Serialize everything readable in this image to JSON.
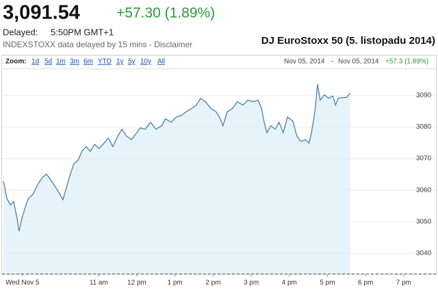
{
  "header": {
    "price": "3,091.54",
    "change": "+57.30 (1.89%)",
    "delayed_label": "Delayed:",
    "delayed_time": "5:50PM GMT+1",
    "note": "INDEXSTOXX data delayed by 15 mins - Disclaimer",
    "caption": "DJ EuroStoxx 50 (5. listopadu 2014)"
  },
  "zoom": {
    "label": "Zoom:",
    "options": [
      "1d",
      "5d",
      "1m",
      "3m",
      "6m",
      "YTD",
      "1y",
      "5y",
      "10y",
      "All"
    ],
    "date_from": "Nov 05, 2014",
    "separator": "-",
    "date_to": "Nov 05, 2014",
    "change": "+57.3 (1.89%)"
  },
  "chart_data": {
    "type": "line",
    "color": "#4a7fa3",
    "fill": "#e6f3fb",
    "grid": true,
    "x": [
      8.5,
      8.59,
      8.68,
      8.77,
      8.86,
      8.91,
      8.98,
      9.09,
      9.16,
      9.27,
      9.4,
      9.52,
      9.63,
      9.76,
      9.88,
      9.99,
      10.06,
      10.15,
      10.24,
      10.35,
      10.46,
      10.56,
      10.67,
      10.78,
      10.89,
      11.01,
      11.14,
      11.25,
      11.37,
      11.5,
      11.61,
      11.73,
      11.86,
      11.96,
      12.09,
      12.22,
      12.36,
      12.5,
      12.65,
      12.75,
      12.9,
      13.04,
      13.17,
      13.29,
      13.44,
      13.56,
      13.67,
      13.8,
      13.94,
      14.08,
      14.19,
      14.26,
      14.37,
      14.51,
      14.64,
      14.78,
      14.91,
      15.05,
      15.18,
      15.27,
      15.34,
      15.41,
      15.52,
      15.63,
      15.73,
      15.84,
      15.95,
      16.09,
      16.2,
      16.31,
      16.42,
      16.52,
      16.58,
      16.67,
      16.74,
      16.81,
      16.92,
      17.03,
      17.14,
      17.21,
      17.28,
      17.39,
      17.49,
      17.6
    ],
    "values": [
      3062.9,
      3057.5,
      3055.3,
      3056.4,
      3050.9,
      3047.0,
      3050.9,
      3055.3,
      3057.5,
      3058.6,
      3061.8,
      3064.0,
      3065.1,
      3062.9,
      3060.7,
      3058.6,
      3057.0,
      3060.7,
      3064.5,
      3068.4,
      3069.5,
      3072.3,
      3073.8,
      3072.3,
      3074.5,
      3073.2,
      3074.9,
      3076.5,
      3073.8,
      3077.1,
      3079.3,
      3077.1,
      3076.0,
      3077.6,
      3079.7,
      3079.3,
      3081.5,
      3079.3,
      3080.4,
      3082.6,
      3081.5,
      3083.2,
      3083.7,
      3084.8,
      3085.9,
      3086.9,
      3089.1,
      3088.0,
      3085.9,
      3084.8,
      3082.6,
      3080.4,
      3084.8,
      3085.9,
      3088.0,
      3086.9,
      3088.5,
      3088.0,
      3088.5,
      3085.9,
      3081.5,
      3078.2,
      3080.4,
      3079.3,
      3081.5,
      3078.2,
      3083.2,
      3081.9,
      3077.1,
      3075.4,
      3076.0,
      3074.9,
      3078.2,
      3084.8,
      3093.5,
      3088.5,
      3090.2,
      3089.1,
      3089.8,
      3086.9,
      3089.1,
      3089.3,
      3089.3,
      3090.7
    ],
    "xlim": [
      8.5,
      19.9
    ],
    "xticks": [
      {
        "value": 9,
        "label": "Wed Nov 5"
      },
      {
        "value": 11,
        "label": "11 am"
      },
      {
        "value": 12,
        "label": "12 pm"
      },
      {
        "value": 13,
        "label": "1 pm"
      },
      {
        "value": 14,
        "label": "2 pm"
      },
      {
        "value": 15,
        "label": "3 pm"
      },
      {
        "value": 16,
        "label": "4 pm"
      },
      {
        "value": 17,
        "label": "5 pm"
      },
      {
        "value": 18,
        "label": "6 pm"
      },
      {
        "value": 19,
        "label": "7 pm"
      }
    ],
    "ylim": [
      3033.5,
      3098.3
    ],
    "yticks": [
      3040,
      3050,
      3060,
      3070,
      3080,
      3090
    ]
  }
}
